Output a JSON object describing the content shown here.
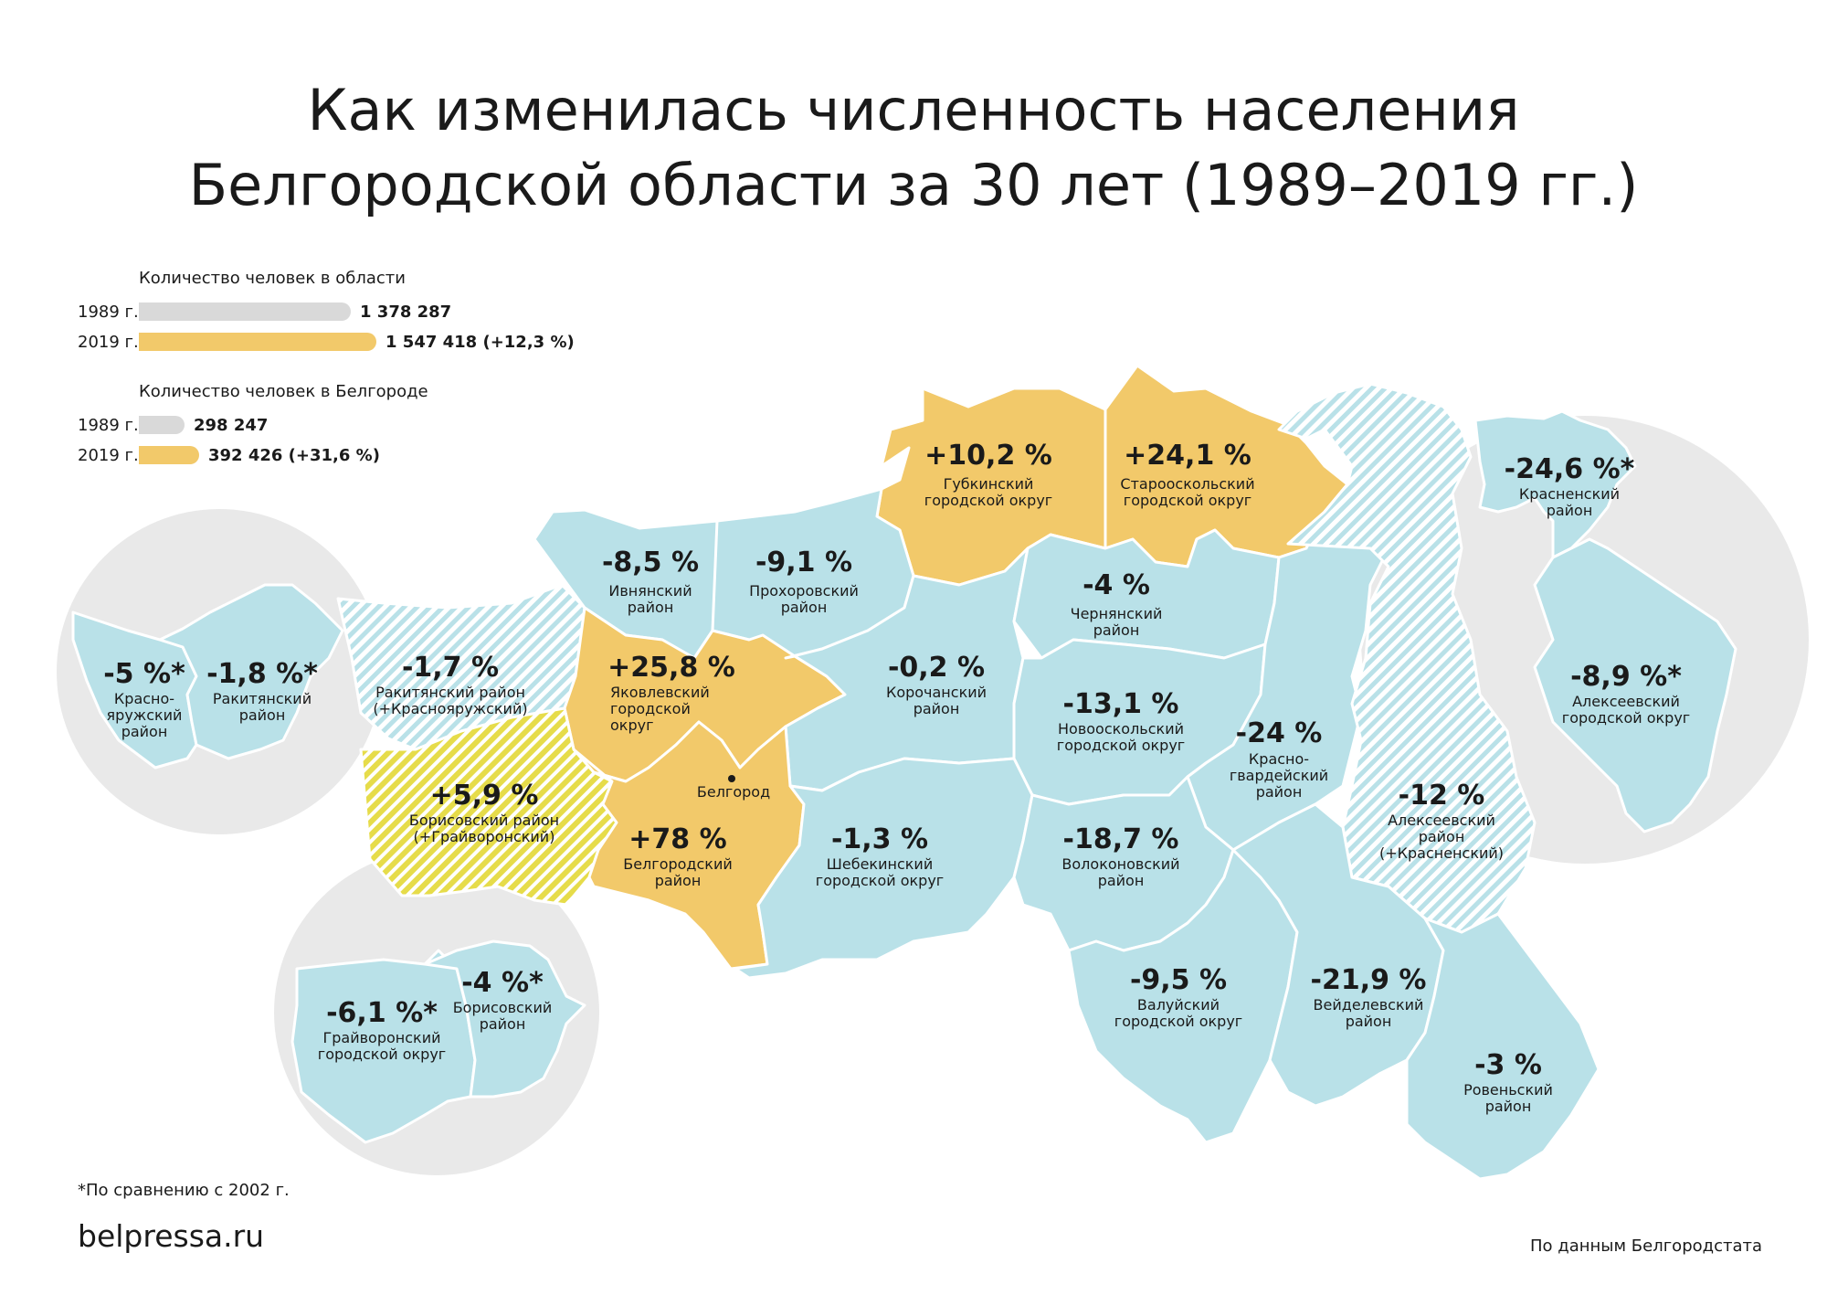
{
  "title": {
    "line1": "Как изменилась численность населения",
    "line2": "Белгородской области за 30 лет (1989–2019 гг.)"
  },
  "legend": {
    "region": {
      "heading": "Количество человек в области",
      "y1989": {
        "year": "1989 г.",
        "value": "1 378 287",
        "count": 1378287
      },
      "y2019": {
        "year": "2019 г.",
        "value": "1 547 418 (+12,3 %)",
        "count": 1547418
      }
    },
    "city": {
      "heading": "Количество человек в Белгороде",
      "y1989": {
        "year": "1989 г.",
        "value": "298 247",
        "count": 298247
      },
      "y2019": {
        "year": "2019 г.",
        "value": "392 426 (+31,6 %)",
        "count": 392426
      }
    }
  },
  "colors": {
    "decline": "#b9e1e8",
    "growth": "#f2c96a",
    "merged_growth": "#e6dc4a",
    "inset_bg": "#e9e9e9",
    "bar_1989": "#d9d9d9",
    "bar_2019": "#f2c96a",
    "border": "#ffffff"
  },
  "districts": {
    "gubkin": {
      "pct": "+10,2 %",
      "name1": "Губкинский",
      "name2": "городской округ"
    },
    "stary_oskol": {
      "pct": "+24,1 %",
      "name1": "Старооскольский",
      "name2": "городской округ"
    },
    "ivnya": {
      "pct": "-8,5 %",
      "name1": "Ивнянский",
      "name2": "район"
    },
    "prokhorovka": {
      "pct": "-9,1 %",
      "name1": "Прохоровский",
      "name2": "район"
    },
    "chernyanka": {
      "pct": "-4 %",
      "name1": "Чернянский",
      "name2": "район"
    },
    "rakitnoe_merged": {
      "pct": "-1,7 %",
      "name1": "Ракитянский район",
      "name2": "(+Краснояружский)"
    },
    "yakovlevo": {
      "pct": "+25,8 %",
      "name1": "Яковлевский",
      "name2": "городской",
      "name3": "округ"
    },
    "korocha": {
      "pct": "-0,2 %",
      "name1": "Корочанский",
      "name2": "район"
    },
    "novy_oskol": {
      "pct": "-13,1 %",
      "name1": "Новооскольский",
      "name2": "городской округ"
    },
    "krasnogvardeysky": {
      "pct": "-24 %",
      "name1": "Красно-",
      "name2": "гвардейский",
      "name3": "район"
    },
    "borisovka_merged": {
      "pct": "+5,9 %",
      "name1": "Борисовский район",
      "name2": "(+Грайворонский)"
    },
    "belgorod_city": {
      "name": "Белгород"
    },
    "belgorodsky": {
      "pct": "+78 %",
      "name1": "Белгородский",
      "name2": "район"
    },
    "shebekino": {
      "pct": "-1,3 %",
      "name1": "Шебекинский",
      "name2": "городской округ"
    },
    "volokonovka": {
      "pct": "-18,7 %",
      "name1": "Волоконовский",
      "name2": "район"
    },
    "alekseevka_merged": {
      "pct": "-12 %",
      "name1": "Алексеевский",
      "name2": "район",
      "name3": "(+Красненский)"
    },
    "valuyki": {
      "pct": "-9,5 %",
      "name1": "Валуйский",
      "name2": "городской округ"
    },
    "veydelevka": {
      "pct": "-21,9 %",
      "name1": "Вейделевский",
      "name2": "район"
    },
    "rovenki": {
      "pct": "-3 %",
      "name1": "Ровеньский",
      "name2": "район"
    }
  },
  "insets": {
    "krasnaya_yaruga": {
      "pct": "-5 %*",
      "name1": "Красно-",
      "name2": "яружский",
      "name3": "район"
    },
    "rakitnoe": {
      "pct": "-1,8 %*",
      "name1": "Ракитянский",
      "name2": "район"
    },
    "grayvoron": {
      "pct": "-6,1 %*",
      "name1": "Грайворонский",
      "name2": "городской округ"
    },
    "borisovka": {
      "pct": "-4 %*",
      "name1": "Борисовский",
      "name2": "район"
    },
    "krasnoe": {
      "pct": "-24,6 %*",
      "name1": "Красненский",
      "name2": "район"
    },
    "alekseevka": {
      "pct": "-8,9 %*",
      "name1": "Алексеевский",
      "name2": "городской округ"
    }
  },
  "footnote": "*По сравнению с 2002 г.",
  "site": "belpressa.ru",
  "source": "По данным Белгородстата"
}
